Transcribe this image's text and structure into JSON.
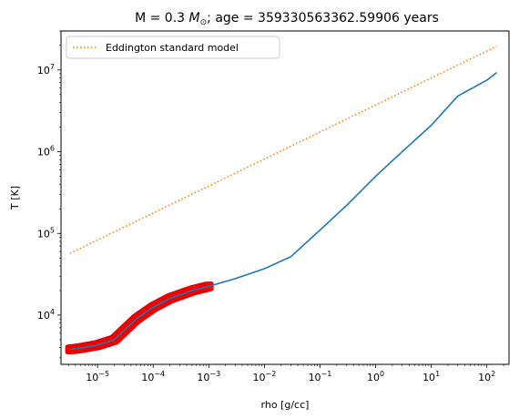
{
  "chart_data": {
    "type": "line",
    "title_prefix": "M = 0.3 ",
    "title_mass_symbol": "M",
    "title_sun_symbol": "⊙",
    "title_suffix": "; age = 359330563362.59906 years",
    "xlabel": "rho [g/cc]",
    "ylabel": "T [K]",
    "x_scale": "log",
    "y_scale": "log",
    "xlim": [
      2.2e-06,
      250
    ],
    "ylim": [
      2500,
      30000000
    ],
    "x_ticks": [
      {
        "value": 1e-05,
        "base": "10",
        "exp": "−5"
      },
      {
        "value": 0.0001,
        "base": "10",
        "exp": "−4"
      },
      {
        "value": 0.001,
        "base": "10",
        "exp": "−3"
      },
      {
        "value": 0.01,
        "base": "10",
        "exp": "−2"
      },
      {
        "value": 0.1,
        "base": "10",
        "exp": "−1"
      },
      {
        "value": 1,
        "base": "10",
        "exp": "0"
      },
      {
        "value": 10,
        "base": "10",
        "exp": "1"
      },
      {
        "value": 100,
        "base": "10",
        "exp": "2"
      }
    ],
    "y_ticks": [
      {
        "value": 10000.0,
        "base": "10",
        "exp": "4"
      },
      {
        "value": 100000.0,
        "base": "10",
        "exp": "5"
      },
      {
        "value": 1000000.0,
        "base": "10",
        "exp": "6"
      },
      {
        "value": 10000000.0,
        "base": "10",
        "exp": "7"
      }
    ],
    "grid": false,
    "legend_position": "top-left",
    "series": [
      {
        "name": "",
        "style": "solid",
        "color": "#1f77b4",
        "x": [
          3.2e-06,
          5e-06,
          1e-05,
          2e-05,
          3e-05,
          5e-05,
          0.0001,
          0.0002,
          0.0005,
          0.001,
          0.003,
          0.01,
          0.03,
          0.1,
          0.3,
          1,
          3,
          10,
          30,
          60,
          100,
          150
        ],
        "y": [
          3800,
          3950,
          4300,
          5000,
          6500,
          9000,
          12500,
          16000,
          20000,
          22500,
          28000,
          37000,
          52000,
          110000,
          220000,
          500000,
          1000000,
          2100000,
          4800000,
          6200000,
          7500000,
          9300000
        ]
      },
      {
        "name": "Eddington standard model",
        "style": "dotted",
        "color": "#ff7f0e",
        "x": [
          3.2e-06,
          150
        ],
        "y": [
          57000,
          19500000
        ]
      }
    ],
    "markers": {
      "color": "#ff0000",
      "x_range": [
        3.2e-06,
        0.001
      ],
      "count": 90
    }
  }
}
